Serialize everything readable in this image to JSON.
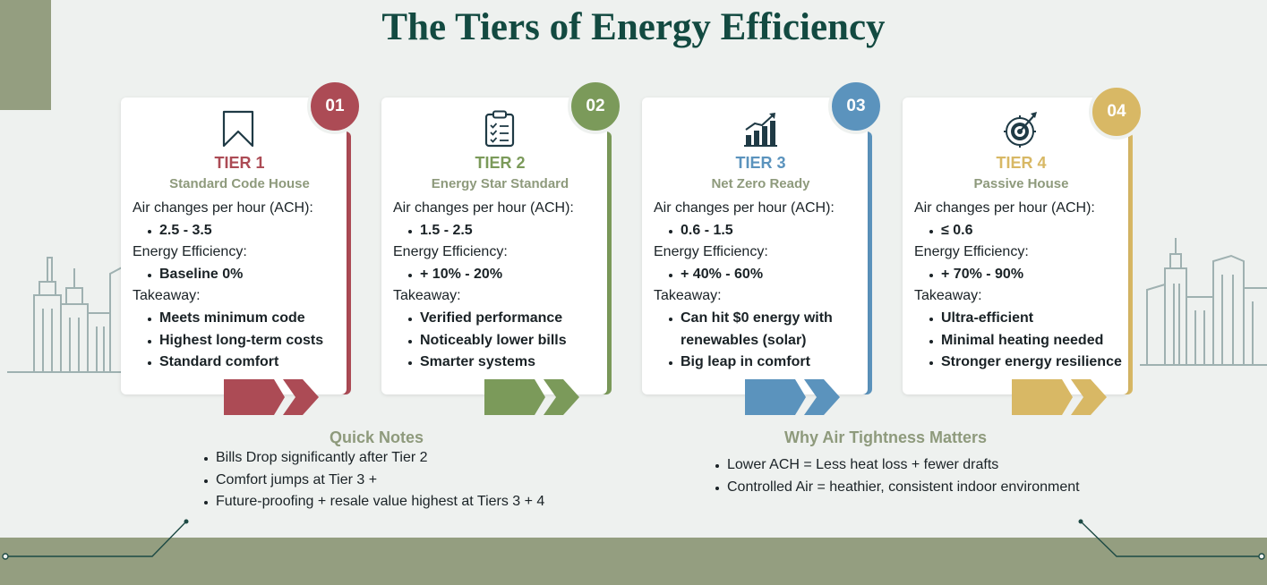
{
  "title": "The Tiers of Energy Efficiency",
  "tiers": [
    {
      "number": "01",
      "label": "TIER 1",
      "name": "Standard Code House",
      "color": "#ac4b55",
      "icon": "bookmark-icon",
      "ach_heading": "Air changes per hour (ACH):",
      "ach_value": "2.5 - 3.5",
      "efficiency_heading": "Energy Efficiency:",
      "efficiency_value": "Baseline 0%",
      "takeaway_heading": "Takeaway:",
      "takeaways": [
        "Meets minimum code",
        "Highest long-term costs",
        "Standard comfort"
      ]
    },
    {
      "number": "02",
      "label": "TIER 2",
      "name": "Energy Star Standard",
      "color": "#7b9a5a",
      "icon": "clipboard-checklist-icon",
      "ach_heading": "Air changes per hour (ACH):",
      "ach_value": "1.5 - 2.5",
      "efficiency_heading": "Energy Efficiency:",
      "efficiency_value": "+ 10% - 20%",
      "takeaway_heading": "Takeaway:",
      "takeaways": [
        "Verified performance",
        "Noticeably lower bills",
        "Smarter systems"
      ]
    },
    {
      "number": "03",
      "label": "TIER 3",
      "name": "Net Zero Ready",
      "color": "#5b93bd",
      "icon": "bar-chart-growth-icon",
      "ach_heading": "Air changes per hour (ACH):",
      "ach_value": "0.6 - 1.5",
      "efficiency_heading": "Energy Efficiency:",
      "efficiency_value": "+ 40% - 60%",
      "takeaway_heading": "Takeaway:",
      "takeaways": [
        "Can hit $0 energy with renewables (solar)",
        "Big leap in comfort"
      ]
    },
    {
      "number": "04",
      "label": "TIER 4",
      "name": "Passive House",
      "color": "#d8b865",
      "icon": "target-arrow-icon",
      "ach_heading": "Air changes per hour (ACH):",
      "ach_value": "≤ 0.6",
      "efficiency_heading": "Energy Efficiency:",
      "efficiency_value": "+ 70% - 90%",
      "takeaway_heading": "Takeaway:",
      "takeaways": [
        "Ultra-efficient",
        "Minimal heating needed",
        "Stronger energy resilience"
      ]
    }
  ],
  "quick_notes": {
    "title": "Quick Notes",
    "items": [
      "Bills Drop significantly after Tier 2",
      "Comfort jumps at Tier 3 +",
      "Future-proofing + resale value highest at Tiers 3 + 4"
    ]
  },
  "air_tightness": {
    "title": "Why Air Tightness Matters",
    "items": [
      "Lower ACH = Less heat loss + fewer drafts",
      "Controlled Air = heathier, consistent indoor environment"
    ]
  },
  "colors": {
    "background": "#eef1ef",
    "accent_olive": "#949e80",
    "title_green": "#134a41",
    "subheading": "#8e9a7c"
  }
}
